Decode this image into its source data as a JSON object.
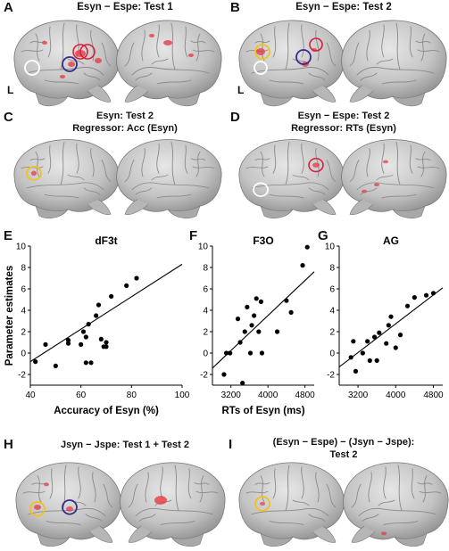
{
  "panels": {
    "A": {
      "letter": "A",
      "title": "Esyn − Espe: Test 1",
      "lmark": "L"
    },
    "B": {
      "letter": "B",
      "title": "Esyn − Espe: Test 2",
      "lmark": "L"
    },
    "C": {
      "letter": "C",
      "title_line1": "Esyn: Test 2",
      "title_line2": "Regressor: Acc (Esyn)"
    },
    "D": {
      "letter": "D",
      "title_line1": "Esyn − Espe: Test 2",
      "title_line2": "Regressor: RTs (Esyn)"
    },
    "E": {
      "letter": "E"
    },
    "F": {
      "letter": "F"
    },
    "G": {
      "letter": "G"
    },
    "H": {
      "letter": "H",
      "title": "Jsyn − Jspe: Test 1 + Test 2"
    },
    "I": {
      "letter": "I",
      "title_line1": "(Esyn − Espe) − (Jsyn − Jspe):",
      "title_line2": "Test 2"
    }
  },
  "colors": {
    "brain": "#c9c9c9",
    "brain_dark": "#8f8f8f",
    "activation": "#e8323c",
    "circle_white": "#ffffff",
    "circle_red": "#d81e3a",
    "circle_purple": "#3a2a8a",
    "circle_yellow": "#f2c21a"
  },
  "chart_data": [
    {
      "type": "scatter",
      "title": "dF3t",
      "xlabel": "Accuracy of Esyn (%)",
      "ylabel": "Parameter estimates",
      "xlim": [
        40,
        100
      ],
      "ylim": [
        -3,
        10
      ],
      "xticks": [
        "40",
        "60",
        "80",
        "100"
      ],
      "yticks": [
        "-2",
        "0",
        "2",
        "4",
        "6",
        "8",
        "10"
      ],
      "points": [
        [
          42,
          -0.8
        ],
        [
          46,
          0.8
        ],
        [
          50,
          -1.2
        ],
        [
          55,
          1.2
        ],
        [
          55,
          0.9
        ],
        [
          60,
          0.8
        ],
        [
          61,
          2.0
        ],
        [
          62,
          1.5
        ],
        [
          63,
          2.7
        ],
        [
          62,
          -0.9
        ],
        [
          64,
          -0.9
        ],
        [
          66,
          3.5
        ],
        [
          67,
          4.5
        ],
        [
          68,
          1.3
        ],
        [
          69,
          0.6
        ],
        [
          70,
          0.6
        ],
        [
          70,
          1.0
        ],
        [
          72,
          5.3
        ],
        [
          78,
          6.3
        ],
        [
          82,
          7.0
        ]
      ],
      "fit": [
        [
          40,
          -0.8
        ],
        [
          100,
          8.3
        ]
      ]
    },
    {
      "type": "scatter",
      "title": "F3O",
      "xlabel": "RTs of Esyn (ms)",
      "ylabel": "",
      "xlim": [
        2800,
        5000
      ],
      "ylim": [
        -3,
        10
      ],
      "xticks": [
        "3200",
        "4000",
        "4800"
      ],
      "yticks": [
        "-2",
        "0",
        "2",
        "4",
        "6",
        "8",
        "10"
      ],
      "points": [
        [
          3050,
          -2.0
        ],
        [
          3100,
          0.0
        ],
        [
          3180,
          0.0
        ],
        [
          3350,
          3.2
        ],
        [
          3400,
          1.0
        ],
        [
          3450,
          -2.8
        ],
        [
          3500,
          2.0
        ],
        [
          3550,
          4.3
        ],
        [
          3620,
          0.0
        ],
        [
          3650,
          2.6
        ],
        [
          3700,
          3.5
        ],
        [
          3750,
          5.1
        ],
        [
          3800,
          2.0
        ],
        [
          3850,
          4.8
        ],
        [
          3870,
          0.0
        ],
        [
          4200,
          2.0
        ],
        [
          4400,
          4.9
        ],
        [
          4500,
          3.8
        ],
        [
          4750,
          8.2
        ],
        [
          4850,
          9.9
        ]
      ],
      "fit": [
        [
          2800,
          -1.4
        ],
        [
          5000,
          7.6
        ]
      ]
    },
    {
      "type": "scatter",
      "title": "AG",
      "xlabel": "",
      "ylabel": "",
      "xlim": [
        2800,
        5000
      ],
      "ylim": [
        -3,
        10
      ],
      "xticks": [
        "3200",
        "4000",
        "4800"
      ],
      "yticks": [
        "-2",
        "0",
        "2",
        "4",
        "6",
        "8",
        "10"
      ],
      "points": [
        [
          3050,
          -0.4
        ],
        [
          3100,
          1.1
        ],
        [
          3150,
          -1.7
        ],
        [
          3300,
          0.0
        ],
        [
          3400,
          1.1
        ],
        [
          3450,
          -0.7
        ],
        [
          3550,
          1.5
        ],
        [
          3600,
          -0.7
        ],
        [
          3650,
          1.9
        ],
        [
          3800,
          0.9
        ],
        [
          3850,
          2.6
        ],
        [
          3900,
          3.4
        ],
        [
          4000,
          0.5
        ],
        [
          4100,
          1.7
        ],
        [
          4250,
          4.4
        ],
        [
          4400,
          5.2
        ],
        [
          4650,
          5.4
        ],
        [
          4800,
          5.6
        ]
      ],
      "fit": [
        [
          2800,
          -1.3
        ],
        [
          5000,
          6.1
        ]
      ]
    }
  ]
}
